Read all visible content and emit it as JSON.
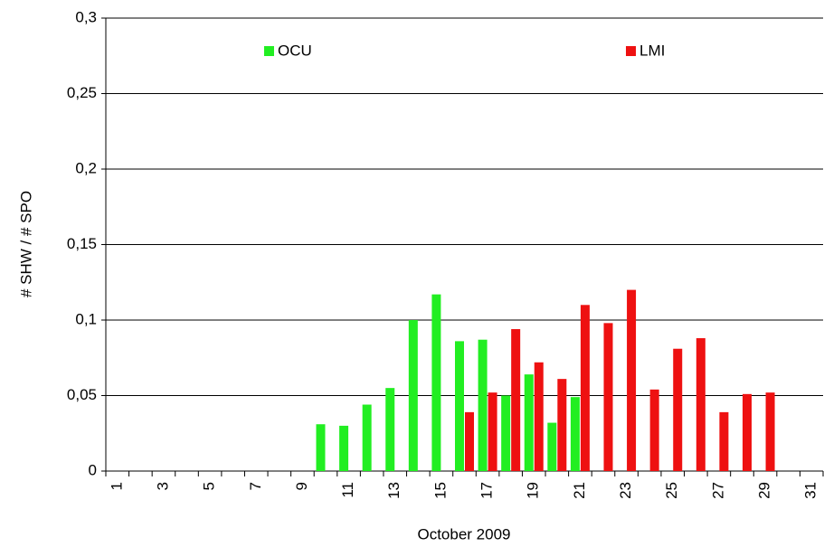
{
  "chart_data": {
    "type": "bar",
    "x_label": "October 2009",
    "y_label": "# SHW / # SPO",
    "categories": [
      "1",
      null,
      "3",
      null,
      "5",
      null,
      "7",
      null,
      "9",
      null,
      "11",
      null,
      "13",
      null,
      "15",
      null,
      "17",
      null,
      "19",
      null,
      "21",
      null,
      "23",
      null,
      "25",
      null,
      "27",
      null,
      "29",
      null,
      "31"
    ],
    "series": [
      {
        "name": "OCU",
        "color": "#22ee22",
        "values": [
          null,
          null,
          null,
          null,
          null,
          null,
          null,
          null,
          null,
          0.031,
          0.03,
          0.044,
          0.055,
          0.1,
          0.117,
          0.086,
          0.087,
          0.05,
          0.064,
          0.032,
          0.049,
          null,
          null,
          null,
          null,
          null,
          null,
          null,
          null,
          null,
          null
        ]
      },
      {
        "name": "LMI",
        "color": "#ee1111",
        "values": [
          null,
          null,
          null,
          null,
          null,
          null,
          null,
          null,
          null,
          null,
          null,
          null,
          null,
          null,
          null,
          0.039,
          0.052,
          0.094,
          0.072,
          0.061,
          0.11,
          0.098,
          0.12,
          0.054,
          0.081,
          0.088,
          0.039,
          0.051,
          0.052,
          null,
          null
        ]
      }
    ],
    "ylim": [
      0,
      0.3
    ],
    "yticks": [
      0,
      {
        "value": 0.05,
        "label": "0,05"
      },
      {
        "value": 0.1,
        "label": "0,1"
      },
      {
        "value": 0.15,
        "label": "0,15"
      },
      {
        "value": 0.2,
        "label": "0,2"
      },
      {
        "value": 0.25,
        "label": "0,25"
      },
      {
        "value": 0.3,
        "label": "0,3"
      }
    ],
    "grid": true
  }
}
